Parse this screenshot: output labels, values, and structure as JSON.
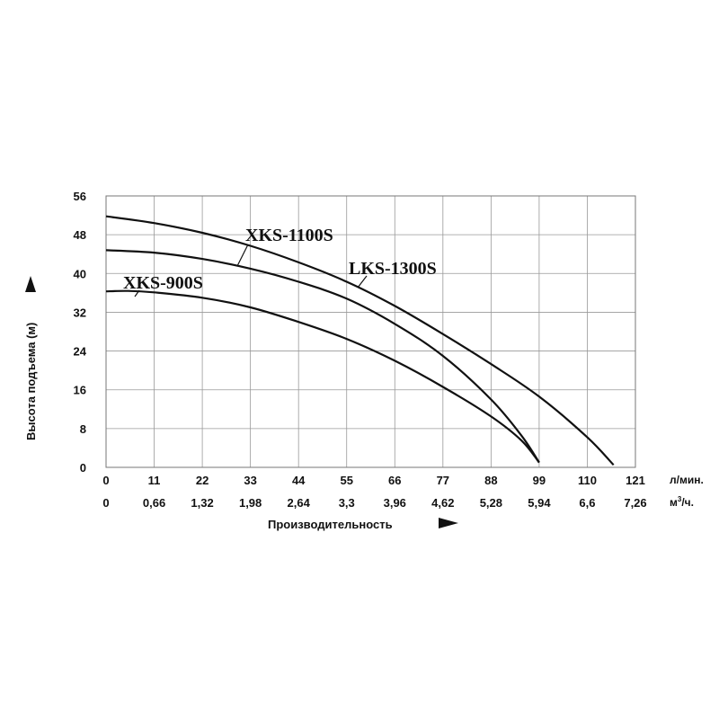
{
  "chart_data": {
    "type": "line",
    "xlabel": "Производительность",
    "ylabel": "Высота подъема (м)",
    "x_unit_primary": "л/мин.",
    "x_unit_secondary_base": "м",
    "x_unit_secondary_sup": "3",
    "x_unit_secondary_tail": "/ч.",
    "xlim": [
      0,
      121
    ],
    "ylim": [
      0,
      56
    ],
    "x_ticks": [
      "0",
      "11",
      "22",
      "33",
      "44",
      "55",
      "66",
      "77",
      "88",
      "99",
      "110",
      "121"
    ],
    "x_ticks_secondary": [
      "0",
      "0,66",
      "1,32",
      "1,98",
      "2,64",
      "3,3",
      "3,96",
      "4,62",
      "5,28",
      "5,94",
      "6,6",
      "7,26"
    ],
    "y_ticks": [
      "0",
      "8",
      "16",
      "24",
      "32",
      "40",
      "48",
      "56"
    ],
    "grid": true,
    "series": [
      {
        "name": "XKS-900S",
        "x": [
          0,
          5,
          11,
          22,
          33,
          44,
          55,
          66,
          77,
          88,
          95,
          99
        ],
        "y": [
          36.3,
          36.4,
          36.1,
          35.0,
          33.0,
          30.0,
          26.5,
          22.0,
          16.6,
          10.5,
          5.5,
          1.0
        ]
      },
      {
        "name": "XKS-1100S",
        "x": [
          0,
          11,
          22,
          33,
          44,
          55,
          66,
          77,
          88,
          95,
          99
        ],
        "y": [
          44.8,
          44.3,
          43.0,
          41.0,
          38.3,
          34.8,
          29.6,
          23.0,
          14.0,
          6.5,
          1.0
        ]
      },
      {
        "name": "LKS-1300S",
        "x": [
          0,
          11,
          22,
          33,
          44,
          55,
          66,
          77,
          88,
          99,
          110,
          116
        ],
        "y": [
          51.8,
          50.4,
          48.4,
          45.7,
          42.3,
          38.3,
          33.3,
          27.5,
          21.3,
          14.6,
          6.2,
          0.5
        ]
      }
    ]
  }
}
